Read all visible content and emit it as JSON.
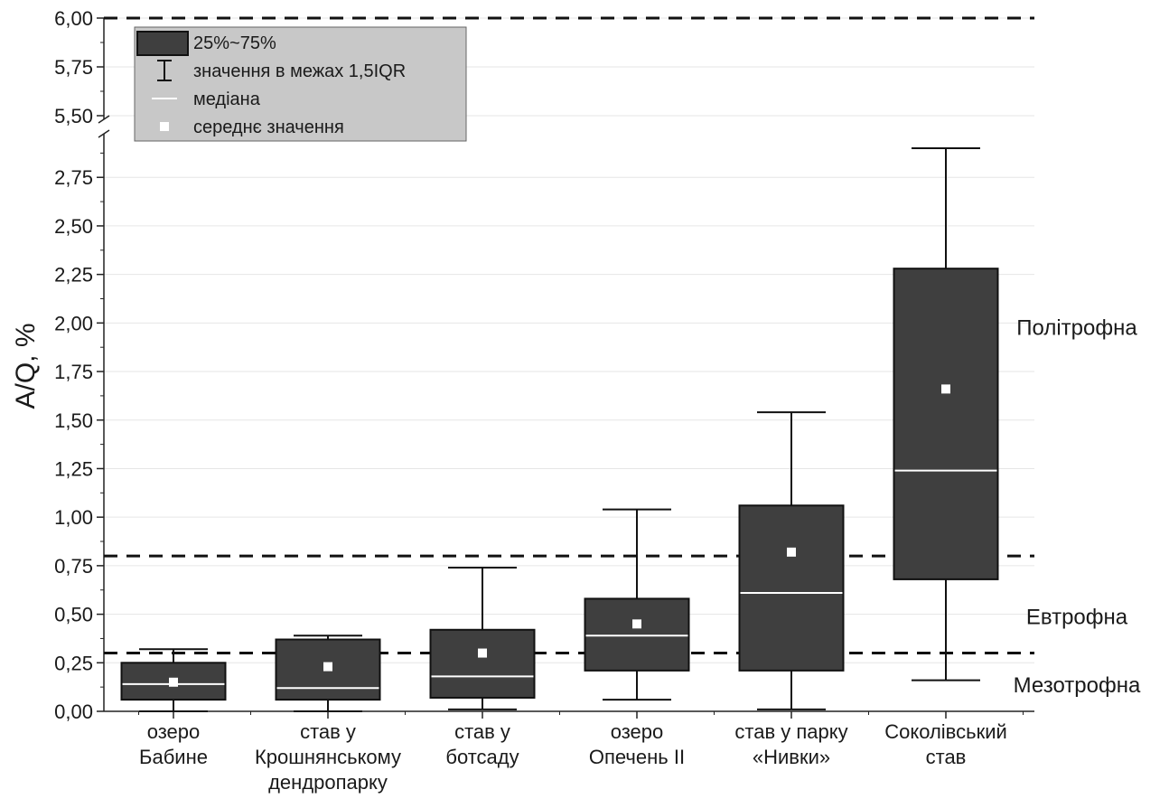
{
  "chart_data": {
    "type": "box",
    "ylabel": "A/Q, %",
    "y_axis_break": {
      "lower_max": 2.9,
      "upper_min": 5.5
    },
    "ylim": [
      0,
      6.0
    ],
    "y_ticks": [
      {
        "value": 0.0,
        "label": "0,00"
      },
      {
        "value": 0.25,
        "label": "0,25"
      },
      {
        "value": 0.5,
        "label": "0,50"
      },
      {
        "value": 0.75,
        "label": "0,75"
      },
      {
        "value": 1.0,
        "label": "1,00"
      },
      {
        "value": 1.25,
        "label": "1,25"
      },
      {
        "value": 1.5,
        "label": "1,50"
      },
      {
        "value": 1.75,
        "label": "1,75"
      },
      {
        "value": 2.0,
        "label": "2,00"
      },
      {
        "value": 2.25,
        "label": "2,25"
      },
      {
        "value": 2.5,
        "label": "2,50"
      },
      {
        "value": 2.75,
        "label": "2,75"
      },
      {
        "value": 5.5,
        "label": "5,50"
      },
      {
        "value": 5.75,
        "label": "5,75"
      },
      {
        "value": 6.0,
        "label": "6,00"
      }
    ],
    "categories": [
      {
        "lines": [
          "озеро",
          "Бабине"
        ],
        "whisker_low": 0.0,
        "q1": 0.06,
        "median": 0.14,
        "q3": 0.25,
        "whisker_high": 0.32,
        "mean": 0.15
      },
      {
        "lines": [
          "став у",
          "Крошнянському",
          "дендропарку"
        ],
        "whisker_low": 0.0,
        "q1": 0.06,
        "median": 0.12,
        "q3": 0.37,
        "whisker_high": 0.39,
        "mean": 0.23
      },
      {
        "lines": [
          "став у",
          "ботсаду"
        ],
        "whisker_low": 0.01,
        "q1": 0.07,
        "median": 0.18,
        "q3": 0.42,
        "whisker_high": 0.74,
        "mean": 0.3
      },
      {
        "lines": [
          "озеро",
          "Опечень II"
        ],
        "whisker_low": 0.06,
        "q1": 0.21,
        "median": 0.39,
        "q3": 0.58,
        "whisker_high": 1.04,
        "mean": 0.45
      },
      {
        "lines": [
          "став у парку",
          "«Нивки»"
        ],
        "whisker_low": 0.01,
        "q1": 0.21,
        "median": 0.61,
        "q3": 1.06,
        "whisker_high": 1.54,
        "mean": 0.82
      },
      {
        "lines": [
          "Соколівський",
          "став"
        ],
        "whisker_low": 0.16,
        "q1": 0.68,
        "median": 1.24,
        "q3": 2.28,
        "whisker_high": 2.9,
        "mean": 1.66
      }
    ],
    "reference_lines": [
      0.3,
      0.8,
      6.0
    ],
    "zones": [
      {
        "label": "Політрофна",
        "y": 1.98
      },
      {
        "label": "Евтрофна",
        "y": 0.49
      },
      {
        "label": "Мезотрофна",
        "y": 0.14
      }
    ],
    "legend": {
      "position": "top-left",
      "items": [
        {
          "kind": "box",
          "label": "25%~75%"
        },
        {
          "kind": "whisker",
          "label": "значення в межах 1,5IQR"
        },
        {
          "kind": "median",
          "label": "медіана"
        },
        {
          "kind": "mean",
          "label": "середнє значення"
        }
      ]
    },
    "colors": {
      "box": "#3f3f3f",
      "median": "#ffffff",
      "mean": "#ffffff",
      "legend_bg": "#c8c8c8",
      "grid": "#e6e6e6"
    }
  }
}
